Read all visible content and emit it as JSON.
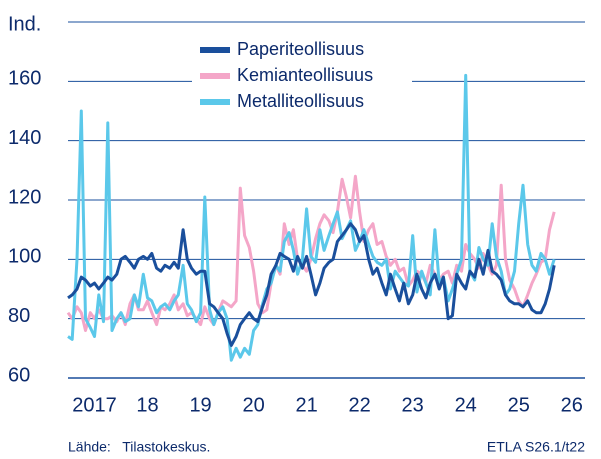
{
  "chart_data": {
    "type": "line",
    "y_label": "Ind.",
    "source": "Lähde:   Tilastokeskus.",
    "note": "ETLA S26.1/t22",
    "xlim": [
      2017,
      2026.75
    ],
    "xticks": [
      {
        "value": 2017.5,
        "label": "2017"
      },
      {
        "value": 2018.5,
        "label": "18"
      },
      {
        "value": 2019.5,
        "label": "19"
      },
      {
        "value": 2020.5,
        "label": "20"
      },
      {
        "value": 2021.5,
        "label": "21"
      },
      {
        "value": 2022.5,
        "label": "22"
      },
      {
        "value": 2023.5,
        "label": "23"
      },
      {
        "value": 2024.5,
        "label": "24"
      },
      {
        "value": 2025.5,
        "label": "25"
      },
      {
        "value": 2026.5,
        "label": "26"
      }
    ],
    "ylim": [
      60,
      180
    ],
    "yticks": [
      60,
      80,
      100,
      120,
      140,
      160
    ],
    "grid": true,
    "legend": "top",
    "x": [
      2017.0,
      2017.08,
      2017.17,
      2017.25,
      2017.33,
      2017.42,
      2017.5,
      2017.58,
      2017.67,
      2017.75,
      2017.83,
      2017.92,
      2018.0,
      2018.08,
      2018.17,
      2018.25,
      2018.33,
      2018.42,
      2018.5,
      2018.58,
      2018.67,
      2018.75,
      2018.83,
      2018.92,
      2019.0,
      2019.08,
      2019.17,
      2019.25,
      2019.33,
      2019.42,
      2019.5,
      2019.58,
      2019.67,
      2019.75,
      2019.83,
      2019.92,
      2020.0,
      2020.08,
      2020.17,
      2020.25,
      2020.33,
      2020.42,
      2020.5,
      2020.58,
      2020.67,
      2020.75,
      2020.83,
      2020.92,
      2021.0,
      2021.08,
      2021.17,
      2021.25,
      2021.33,
      2021.42,
      2021.5,
      2021.58,
      2021.67,
      2021.75,
      2021.83,
      2021.92,
      2022.0,
      2022.08,
      2022.17,
      2022.25,
      2022.33,
      2022.42,
      2022.5,
      2022.58,
      2022.67,
      2022.75,
      2022.83,
      2022.92,
      2023.0,
      2023.08,
      2023.17,
      2023.25,
      2023.33,
      2023.42,
      2023.5,
      2023.58,
      2023.67,
      2023.75,
      2023.83,
      2023.92,
      2024.0,
      2024.08,
      2024.17,
      2024.25,
      2024.33,
      2024.42,
      2024.5,
      2024.58,
      2024.67,
      2024.75,
      2024.83,
      2024.92,
      2025.0,
      2025.08,
      2025.17,
      2025.25,
      2025.33,
      2025.42,
      2025.5,
      2025.58,
      2025.67,
      2025.75,
      2025.83,
      2025.92,
      2026.0,
      2026.08,
      2026.17
    ],
    "series": [
      {
        "name": "Paperiteollisuus",
        "color": "#1a4f9c",
        "values": [
          87,
          88,
          90,
          94,
          93,
          91,
          92,
          90,
          92,
          94,
          93,
          95,
          100,
          101,
          99,
          97,
          100,
          101,
          100,
          102,
          97,
          96,
          98,
          97,
          99,
          97,
          110,
          100,
          97,
          95,
          96,
          96,
          85,
          84,
          82,
          80,
          75,
          71,
          74,
          78,
          80,
          82,
          80,
          79,
          84,
          88,
          95,
          98,
          102,
          101,
          100,
          96,
          101,
          97,
          101,
          95,
          88,
          92,
          97,
          99,
          100,
          106,
          108,
          110,
          112,
          110,
          106,
          108,
          100,
          95,
          97,
          92,
          88,
          95,
          90,
          86,
          92,
          85,
          88,
          95,
          90,
          87,
          92,
          95,
          90,
          94,
          80,
          81,
          95,
          92,
          90,
          96,
          94,
          100,
          95,
          103,
          96,
          95,
          93,
          88,
          86,
          85,
          85,
          84,
          86,
          83,
          82,
          82,
          85,
          90,
          98
        ]
      },
      {
        "name": "Kemianteollisuus",
        "color": "#f4a6c8",
        "values": [
          82,
          80,
          84,
          82,
          76,
          82,
          80,
          83,
          80,
          80,
          81,
          79,
          82,
          78,
          85,
          88,
          83,
          83,
          86,
          82,
          78,
          84,
          83,
          85,
          88,
          83,
          85,
          81,
          82,
          80,
          78,
          84,
          80,
          78,
          82,
          86,
          85,
          84,
          86,
          124,
          108,
          104,
          96,
          85,
          82,
          83,
          92,
          98,
          95,
          112,
          105,
          110,
          100,
          98,
          96,
          100,
          107,
          112,
          115,
          113,
          109,
          116,
          127,
          121,
          114,
          128,
          116,
          106,
          110,
          112,
          105,
          106,
          101,
          98,
          100,
          96,
          97,
          91,
          93,
          96,
          95,
          92,
          98,
          95,
          93,
          95,
          96,
          92,
          98,
          96,
          105,
          102,
          100,
          97,
          102,
          98,
          95,
          98,
          125,
          100,
          93,
          90,
          86,
          84,
          88,
          92,
          95,
          99,
          100,
          110,
          116
        ]
      },
      {
        "name": "Metalliteollisuus",
        "color": "#5bc8ea",
        "values": [
          74,
          73,
          100,
          150,
          80,
          77,
          74,
          88,
          79,
          146,
          76,
          80,
          82,
          79,
          80,
          88,
          84,
          95,
          87,
          86,
          82,
          84,
          85,
          83,
          86,
          88,
          98,
          85,
          83,
          79,
          82,
          121,
          83,
          78,
          82,
          84,
          80,
          66,
          70,
          67,
          70,
          68,
          76,
          78,
          85,
          90,
          92,
          98,
          96,
          106,
          109,
          103,
          95,
          100,
          117,
          101,
          99,
          110,
          103,
          108,
          112,
          116,
          107,
          110,
          113,
          103,
          106,
          110,
          105,
          101,
          99,
          98,
          100,
          90,
          96,
          94,
          92,
          91,
          108,
          89,
          96,
          92,
          88,
          110,
          92,
          94,
          86,
          90,
          95,
          100,
          162,
          96,
          93,
          104,
          100,
          98,
          112,
          101,
          96,
          88,
          90,
          96,
          112,
          125,
          105,
          98,
          96,
          102,
          100,
          95,
          100
        ]
      }
    ]
  }
}
